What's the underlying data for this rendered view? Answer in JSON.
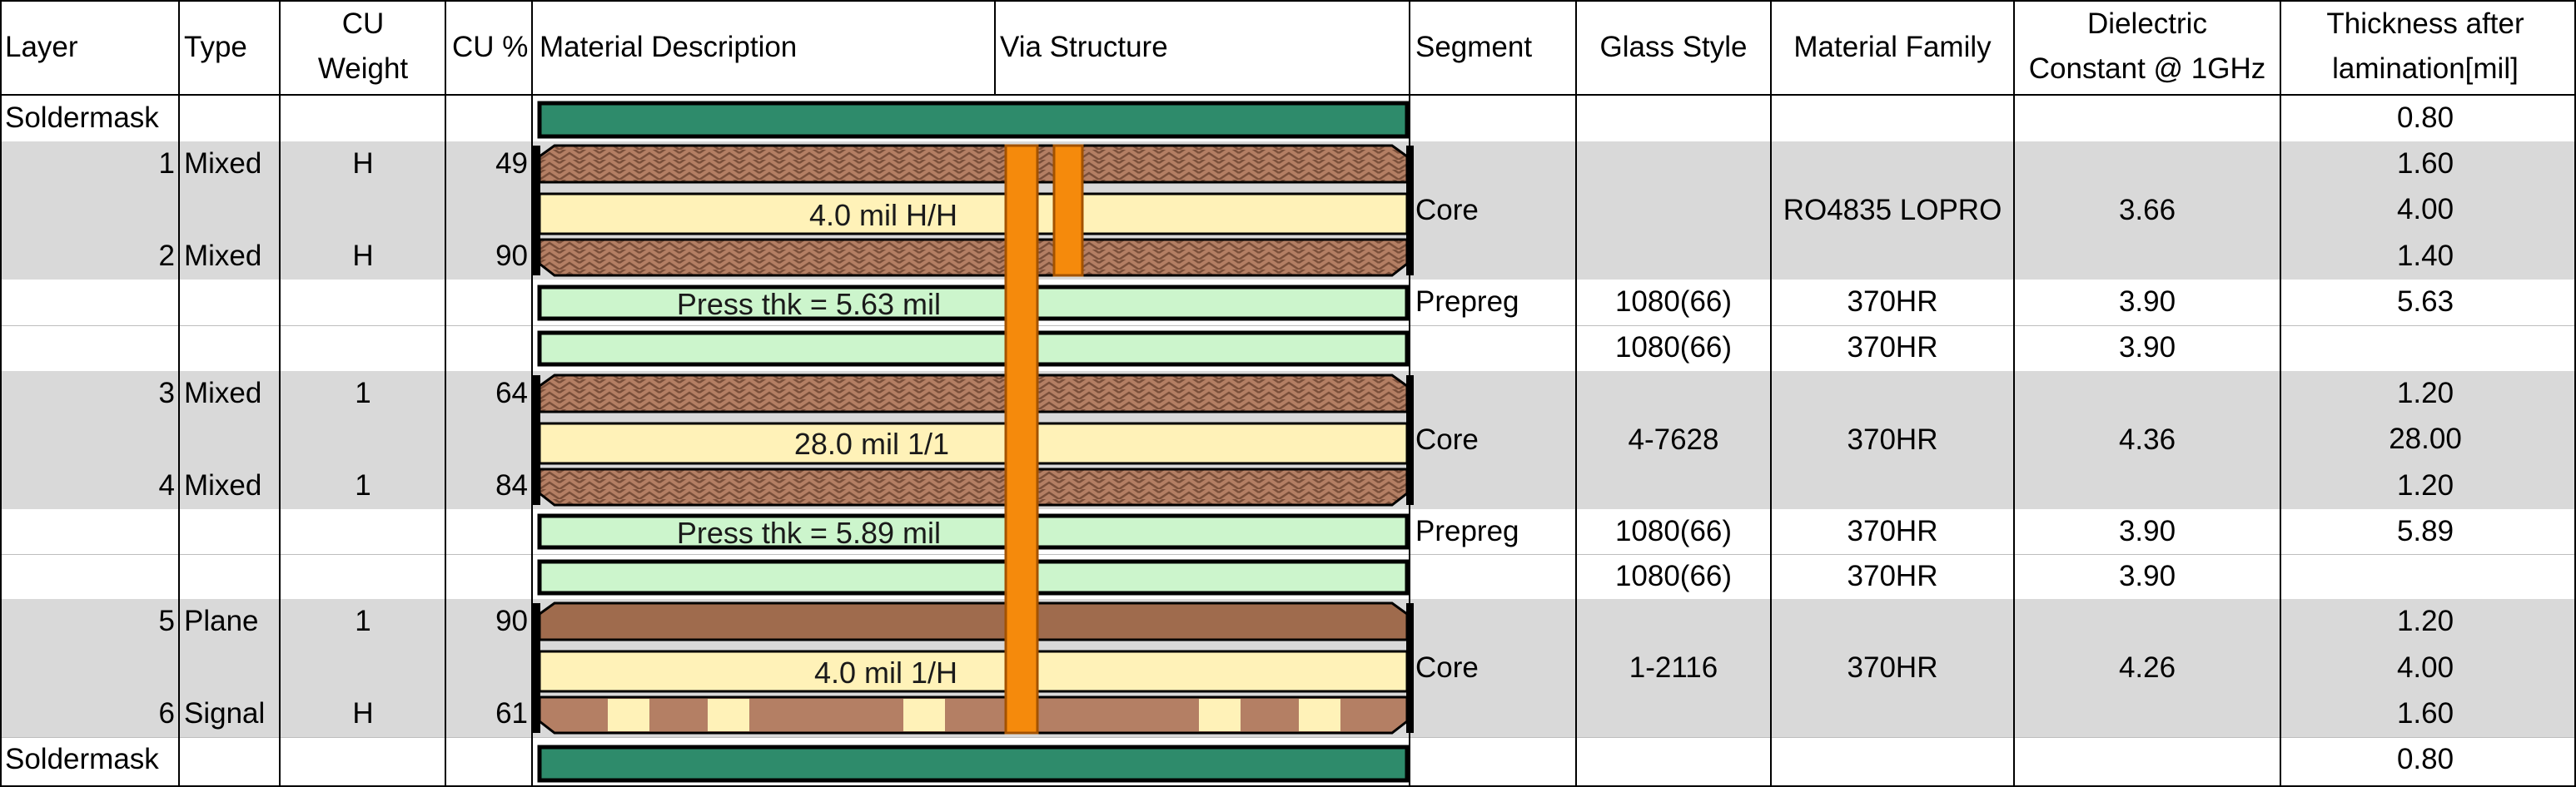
{
  "headers": {
    "layer": "Layer",
    "type": "Type",
    "cu_weight": [
      "CU",
      "Weight"
    ],
    "cu_pct": "CU %",
    "material_description": "Material Description",
    "via_structure": "Via Structure",
    "segment": "Segment",
    "glass_style": "Glass Style",
    "material_family": "Material Family",
    "dielectric": [
      "Dielectric",
      "Constant @ 1GHz"
    ],
    "thickness": [
      "Thickness after",
      "lamination[mil]"
    ]
  },
  "rows": [
    {
      "layer": "Soldermask",
      "thickness": "0.80"
    },
    {
      "layer": "1",
      "type": "Mixed",
      "cu_weight": "H",
      "cu_pct": "49",
      "thickness": "1.60"
    },
    {
      "thickness": "4.00"
    },
    {
      "layer": "2",
      "type": "Mixed",
      "cu_weight": "H",
      "cu_pct": "90",
      "thickness": "1.40"
    },
    {
      "glass_style": "1080(66)",
      "material_family": "370HR",
      "dielectric": "3.90",
      "thickness": "5.63"
    },
    {
      "glass_style": "1080(66)",
      "material_family": "370HR",
      "dielectric": "3.90"
    },
    {
      "layer": "3",
      "type": "Mixed",
      "cu_weight": "1",
      "cu_pct": "64",
      "thickness": "1.20"
    },
    {
      "thickness": "28.00"
    },
    {
      "layer": "4",
      "type": "Mixed",
      "cu_weight": "1",
      "cu_pct": "84",
      "thickness": "1.20"
    },
    {
      "glass_style": "1080(66)",
      "material_family": "370HR",
      "dielectric": "3.90",
      "thickness": "5.89"
    },
    {
      "glass_style": "1080(66)",
      "material_family": "370HR",
      "dielectric": "3.90"
    },
    {
      "layer": "5",
      "type": "Plane",
      "cu_weight": "1",
      "cu_pct": "90",
      "thickness": "1.20"
    },
    {
      "thickness": "4.00"
    },
    {
      "layer": "6",
      "type": "Signal",
      "cu_weight": "H",
      "cu_pct": "61",
      "thickness": "1.60"
    },
    {
      "layer": "Soldermask",
      "thickness": "0.80"
    }
  ],
  "segments": [
    {
      "segment": "Core",
      "material_family": "RO4835 LOPRO",
      "dielectric": "3.66",
      "desc": "4.0 mil H/H"
    },
    {
      "segment": "Prepreg",
      "desc": "Press thk = 5.63 mil"
    },
    {
      "segment": "Core",
      "glass_style": "4-7628",
      "material_family": "370HR",
      "dielectric": "4.36",
      "desc": "28.0 mil 1/1"
    },
    {
      "segment": "Prepreg",
      "desc": "Press thk = 5.89 mil"
    },
    {
      "segment": "Core",
      "glass_style": "1-2116",
      "material_family": "370HR",
      "dielectric": "4.26",
      "desc": "4.0 mil 1/H"
    }
  ],
  "colors": {
    "soldermask": "#2e8b6b",
    "core": "#fff2b8",
    "prepreg": "#ccf5cc",
    "copper_hatch": "#b47f64",
    "copper_plane": "#9f6b4d",
    "via": "#f58a0c",
    "band_gray": "#d9d9d9"
  }
}
